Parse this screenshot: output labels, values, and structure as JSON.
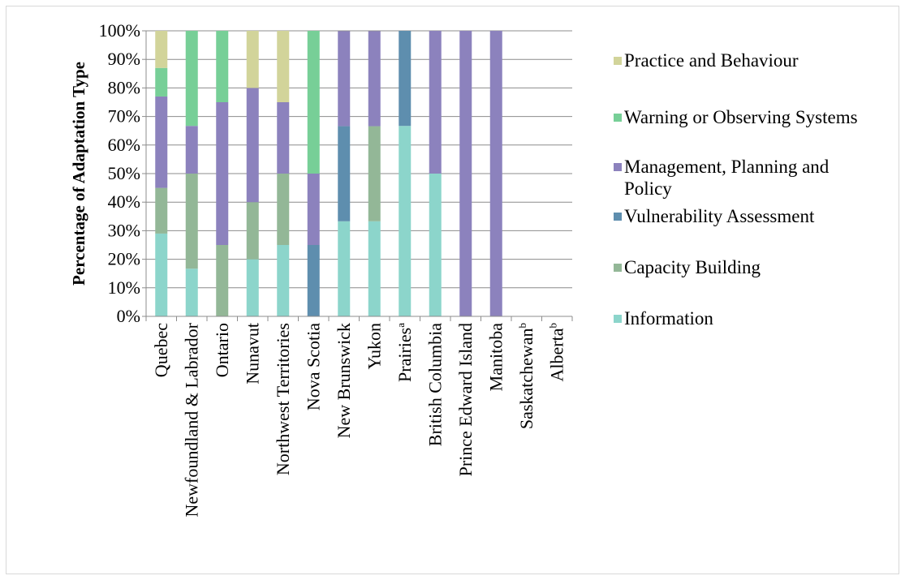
{
  "chart_data": {
    "type": "bar",
    "stacked": true,
    "percent": true,
    "ylabel": "Percentage of Adaptation Type",
    "xlabel": "",
    "ylim": [
      0,
      100
    ],
    "yticks": [
      "0%",
      "10%",
      "20%",
      "30%",
      "40%",
      "50%",
      "60%",
      "70%",
      "80%",
      "90%",
      "100%"
    ],
    "grid": "horizontal",
    "legend_position": "right",
    "categories": [
      "Quebec",
      "Newfoundland & Labrador",
      "Ontario",
      "Nunavut",
      "Northwest Territories",
      "Nova Scotia",
      "New Brunswick",
      "Yukon",
      "Prairies",
      "British Columbia",
      "Prince Edward Island",
      "Manitoba",
      "Saskatchewan",
      "Alberta"
    ],
    "category_superscripts": [
      "",
      "",
      "",
      "",
      "",
      "",
      "",
      "",
      "a",
      "",
      "",
      "",
      "b",
      "b"
    ],
    "series": [
      {
        "name": "Information",
        "color": "#8cd5cb",
        "values": [
          29,
          16.7,
          0,
          20,
          25,
          0,
          33.3,
          33.3,
          66.7,
          50,
          0,
          0,
          0,
          0
        ]
      },
      {
        "name": "Capacity Building",
        "color": "#93b797",
        "values": [
          16,
          33.3,
          25,
          20,
          25,
          0,
          0,
          33.3,
          0,
          0,
          0,
          0,
          0,
          0
        ]
      },
      {
        "name": "Vulnerability Assessment",
        "color": "#5e8eae",
        "values": [
          0,
          0,
          0,
          0,
          0,
          25,
          33.3,
          0,
          33.3,
          0,
          0,
          0,
          0,
          0
        ]
      },
      {
        "name": "Management, Planning and Policy",
        "color": "#8c82bd",
        "values": [
          32,
          16.7,
          50,
          40,
          25,
          25,
          33.3,
          33.3,
          0,
          50,
          100,
          100,
          0,
          0
        ]
      },
      {
        "name": "Warning or Observing Systems",
        "color": "#77cf97",
        "values": [
          10,
          33.3,
          25,
          0,
          0,
          50,
          0,
          0,
          0,
          0,
          0,
          0,
          0,
          0
        ]
      },
      {
        "name": "Practice and Behaviour",
        "color": "#d2d49a",
        "values": [
          13,
          0,
          0,
          20,
          25,
          0,
          0,
          0,
          0,
          0,
          0,
          0,
          0,
          0
        ]
      }
    ],
    "legend": [
      {
        "lines": [
          "Practice and Behaviour"
        ],
        "color": "#d2d49a"
      },
      {
        "lines": [
          "Warning or Observing Systems"
        ],
        "color": "#77cf97"
      },
      {
        "lines": [
          "Management, Planning and",
          "Policy"
        ],
        "color": "#8c82bd"
      },
      {
        "lines": [
          "Vulnerability Assessment"
        ],
        "color": "#5e8eae"
      },
      {
        "lines": [
          "Capacity Building"
        ],
        "color": "#93b797"
      },
      {
        "lines": [
          "Information"
        ],
        "color": "#8cd5cb"
      }
    ]
  }
}
